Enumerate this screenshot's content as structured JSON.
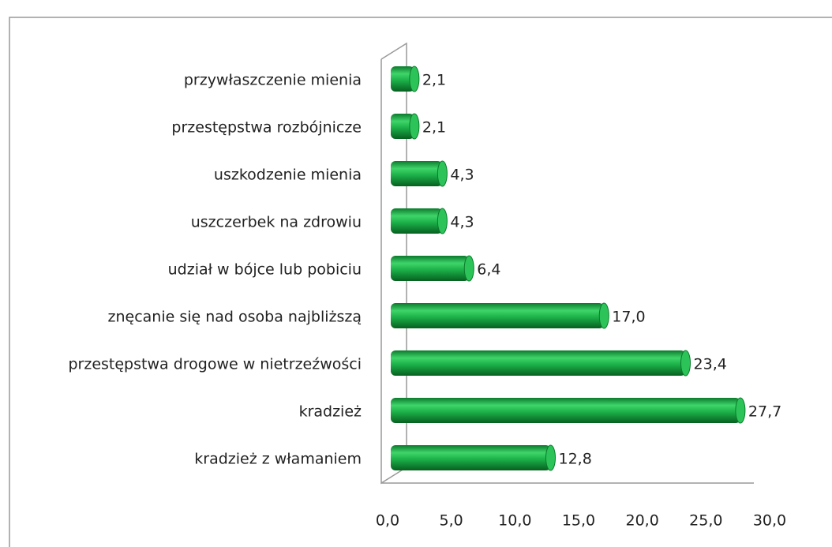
{
  "chart_data": {
    "type": "bar",
    "orientation": "horizontal",
    "categories": [
      "przywłaszczenie mienia",
      "przestępstwa rozbójnicze",
      "uszkodzenie mienia",
      "uszczerbek na zdrowiu",
      "udział w bójce lub pobiciu",
      "znęcanie się nad osoba najbliższą",
      "przestępstwa drogowe w nietrzeźwości",
      "kradzież",
      "kradzież z włamaniem"
    ],
    "values": [
      2.1,
      2.1,
      4.3,
      4.3,
      6.4,
      17.0,
      23.4,
      27.7,
      12.8
    ],
    "value_labels": [
      "2,1",
      "2,1",
      "4,3",
      "4,3",
      "6,4",
      "17,0",
      "23,4",
      "27,7",
      "12,8"
    ],
    "color": "#1db24a",
    "xlim": [
      0,
      30
    ],
    "xticks": [
      {
        "value": 0,
        "label": "0,0"
      },
      {
        "value": 5,
        "label": "5,0"
      },
      {
        "value": 10,
        "label": "10,0"
      },
      {
        "value": 15,
        "label": "15,0"
      },
      {
        "value": 20,
        "label": "20,0"
      },
      {
        "value": 25,
        "label": "25,0"
      },
      {
        "value": 30,
        "label": "30,0"
      }
    ]
  }
}
